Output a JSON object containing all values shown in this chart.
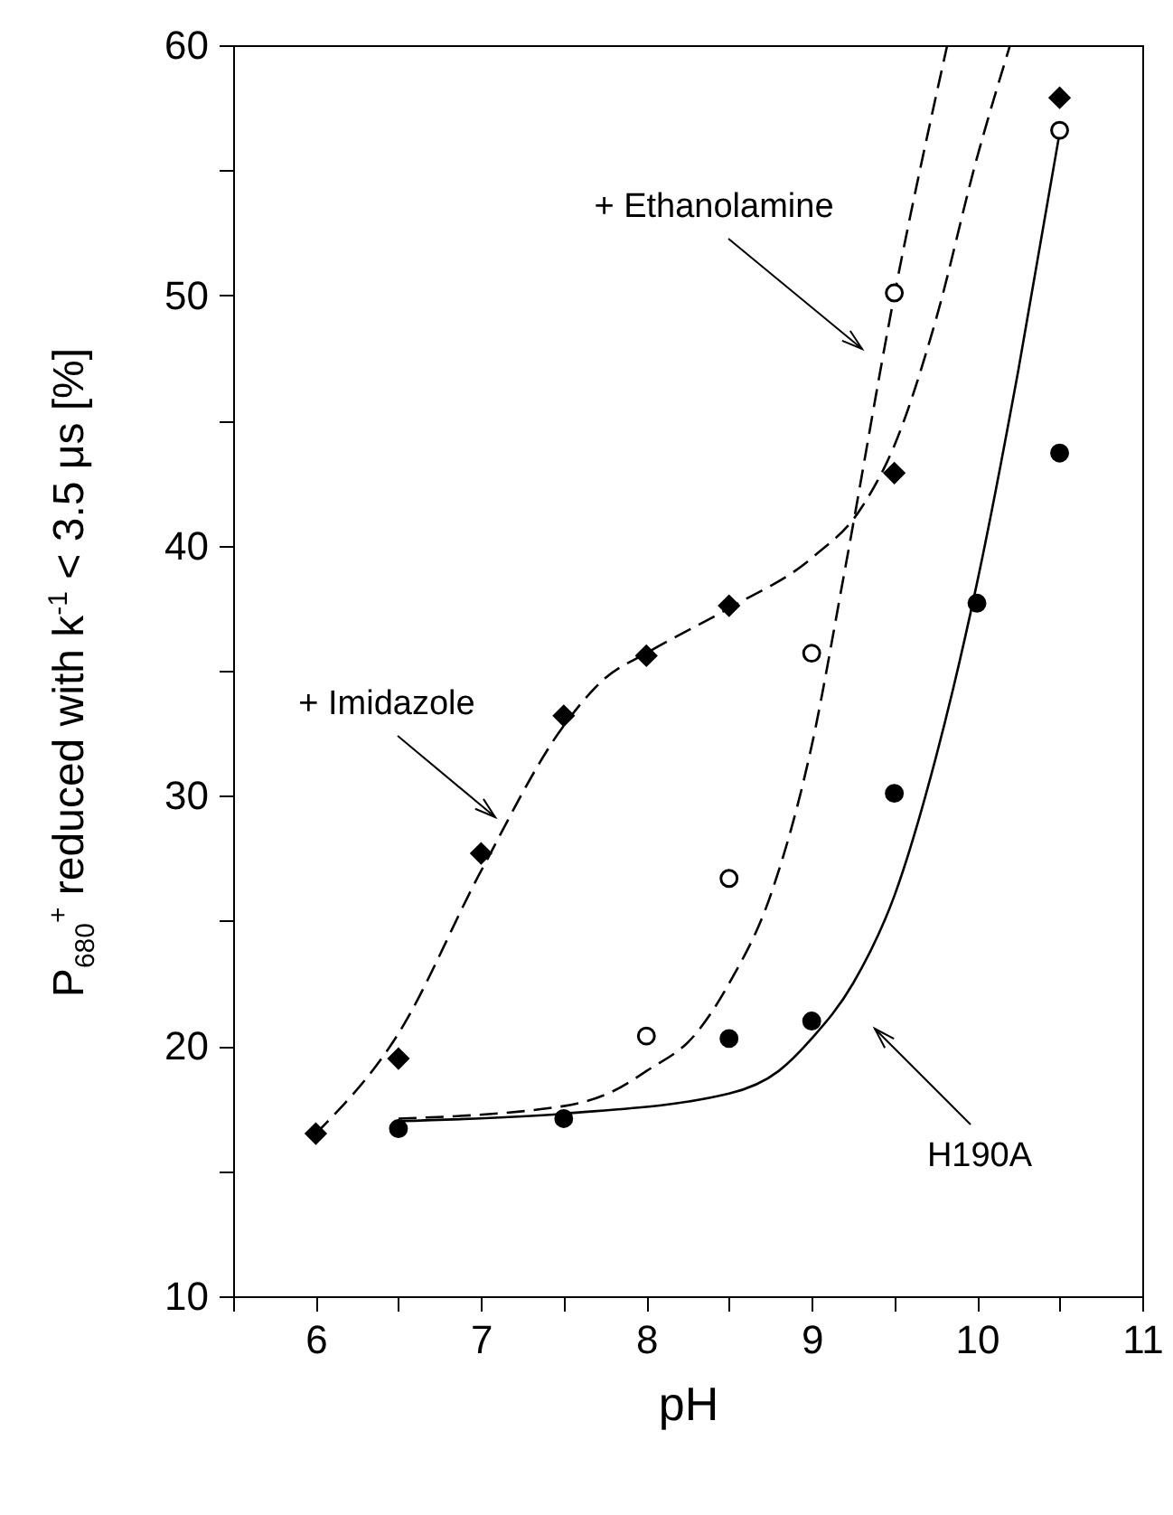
{
  "chart_data": {
    "type": "scatter",
    "xlabel": "pH",
    "ylabel": "P$_{680}$$^{+}$ reduced with k$^{-1}$ < 3.5 μs [%]",
    "xlim": [
      5.5,
      11
    ],
    "ylim": [
      10,
      60
    ],
    "xticks": [
      {
        "value": 5.5,
        "label": null
      },
      6,
      {
        "value": 6.5,
        "label": null
      },
      7,
      {
        "value": 7.5,
        "label": null
      },
      8,
      {
        "value": 8.5,
        "label": null
      },
      9,
      {
        "value": 9.5,
        "label": null
      },
      10,
      {
        "value": 10.5,
        "label": null
      },
      11
    ],
    "yticks": [
      10,
      {
        "value": 15,
        "label": null
      },
      20,
      {
        "value": 25,
        "label": null
      },
      30,
      {
        "value": 35,
        "label": null
      },
      40,
      {
        "value": 45,
        "label": null
      },
      50,
      {
        "value": 55,
        "label": null
      },
      60
    ],
    "grid": false,
    "series": [
      {
        "type": "line",
        "color": "#000000",
        "line_style": "solid",
        "x": [
          6.5,
          7.5,
          8.5,
          8.8,
          9,
          9.25,
          9.5,
          9.75,
          10,
          10.25,
          10.5
        ],
        "values": [
          17,
          17.3,
          18.1,
          19,
          20.3,
          22.5,
          26,
          31.5,
          38.5,
          47,
          56.5
        ]
      },
      {
        "type": "line",
        "color": "#000000",
        "line_style": "dashed",
        "x": [
          6.5,
          7.5,
          7.8,
          8,
          8.3,
          8.5,
          8.75,
          9,
          9.2,
          9.5,
          9.82
        ],
        "values": [
          17.1,
          17.6,
          18.2,
          19,
          20.5,
          22.5,
          26,
          32,
          39,
          50,
          60
        ]
      },
      {
        "type": "line",
        "color": "#000000",
        "line_style": "dashed",
        "x": [
          6,
          6.5,
          7,
          7.5,
          7.75,
          8,
          8.5,
          9,
          9.3,
          9.5,
          9.75,
          10,
          10.2
        ],
        "values": [
          16.5,
          20.5,
          27,
          32.8,
          34.7,
          35.7,
          37.5,
          39.5,
          41.5,
          44,
          49,
          55.5,
          60
        ]
      },
      {
        "type": "scatter",
        "marker": "diamond",
        "color": "#000000",
        "x": [
          6,
          6.5,
          7,
          7.5,
          8,
          8.5,
          9.5,
          10.5
        ],
        "values": [
          16.5,
          19.5,
          27.7,
          33.2,
          35.6,
          37.6,
          42.9,
          57.9
        ]
      },
      {
        "type": "scatter",
        "marker": "circle",
        "color": "#ffffff",
        "x": [
          8,
          8.5,
          9,
          9.5,
          10.5
        ],
        "values": [
          20.4,
          26.7,
          35.7,
          50.1,
          56.6
        ]
      },
      {
        "type": "scatter",
        "marker": "circle",
        "color": "#000000",
        "x": [
          6.5,
          7.5,
          8.5,
          9,
          9.5,
          10,
          10.5
        ],
        "values": [
          16.7,
          17.1,
          20.3,
          21,
          30.1,
          37.7,
          43.7
        ]
      }
    ],
    "annotations": [
      "+ Ethanolamine",
      "+ Imidazole",
      "H190A"
    ]
  }
}
